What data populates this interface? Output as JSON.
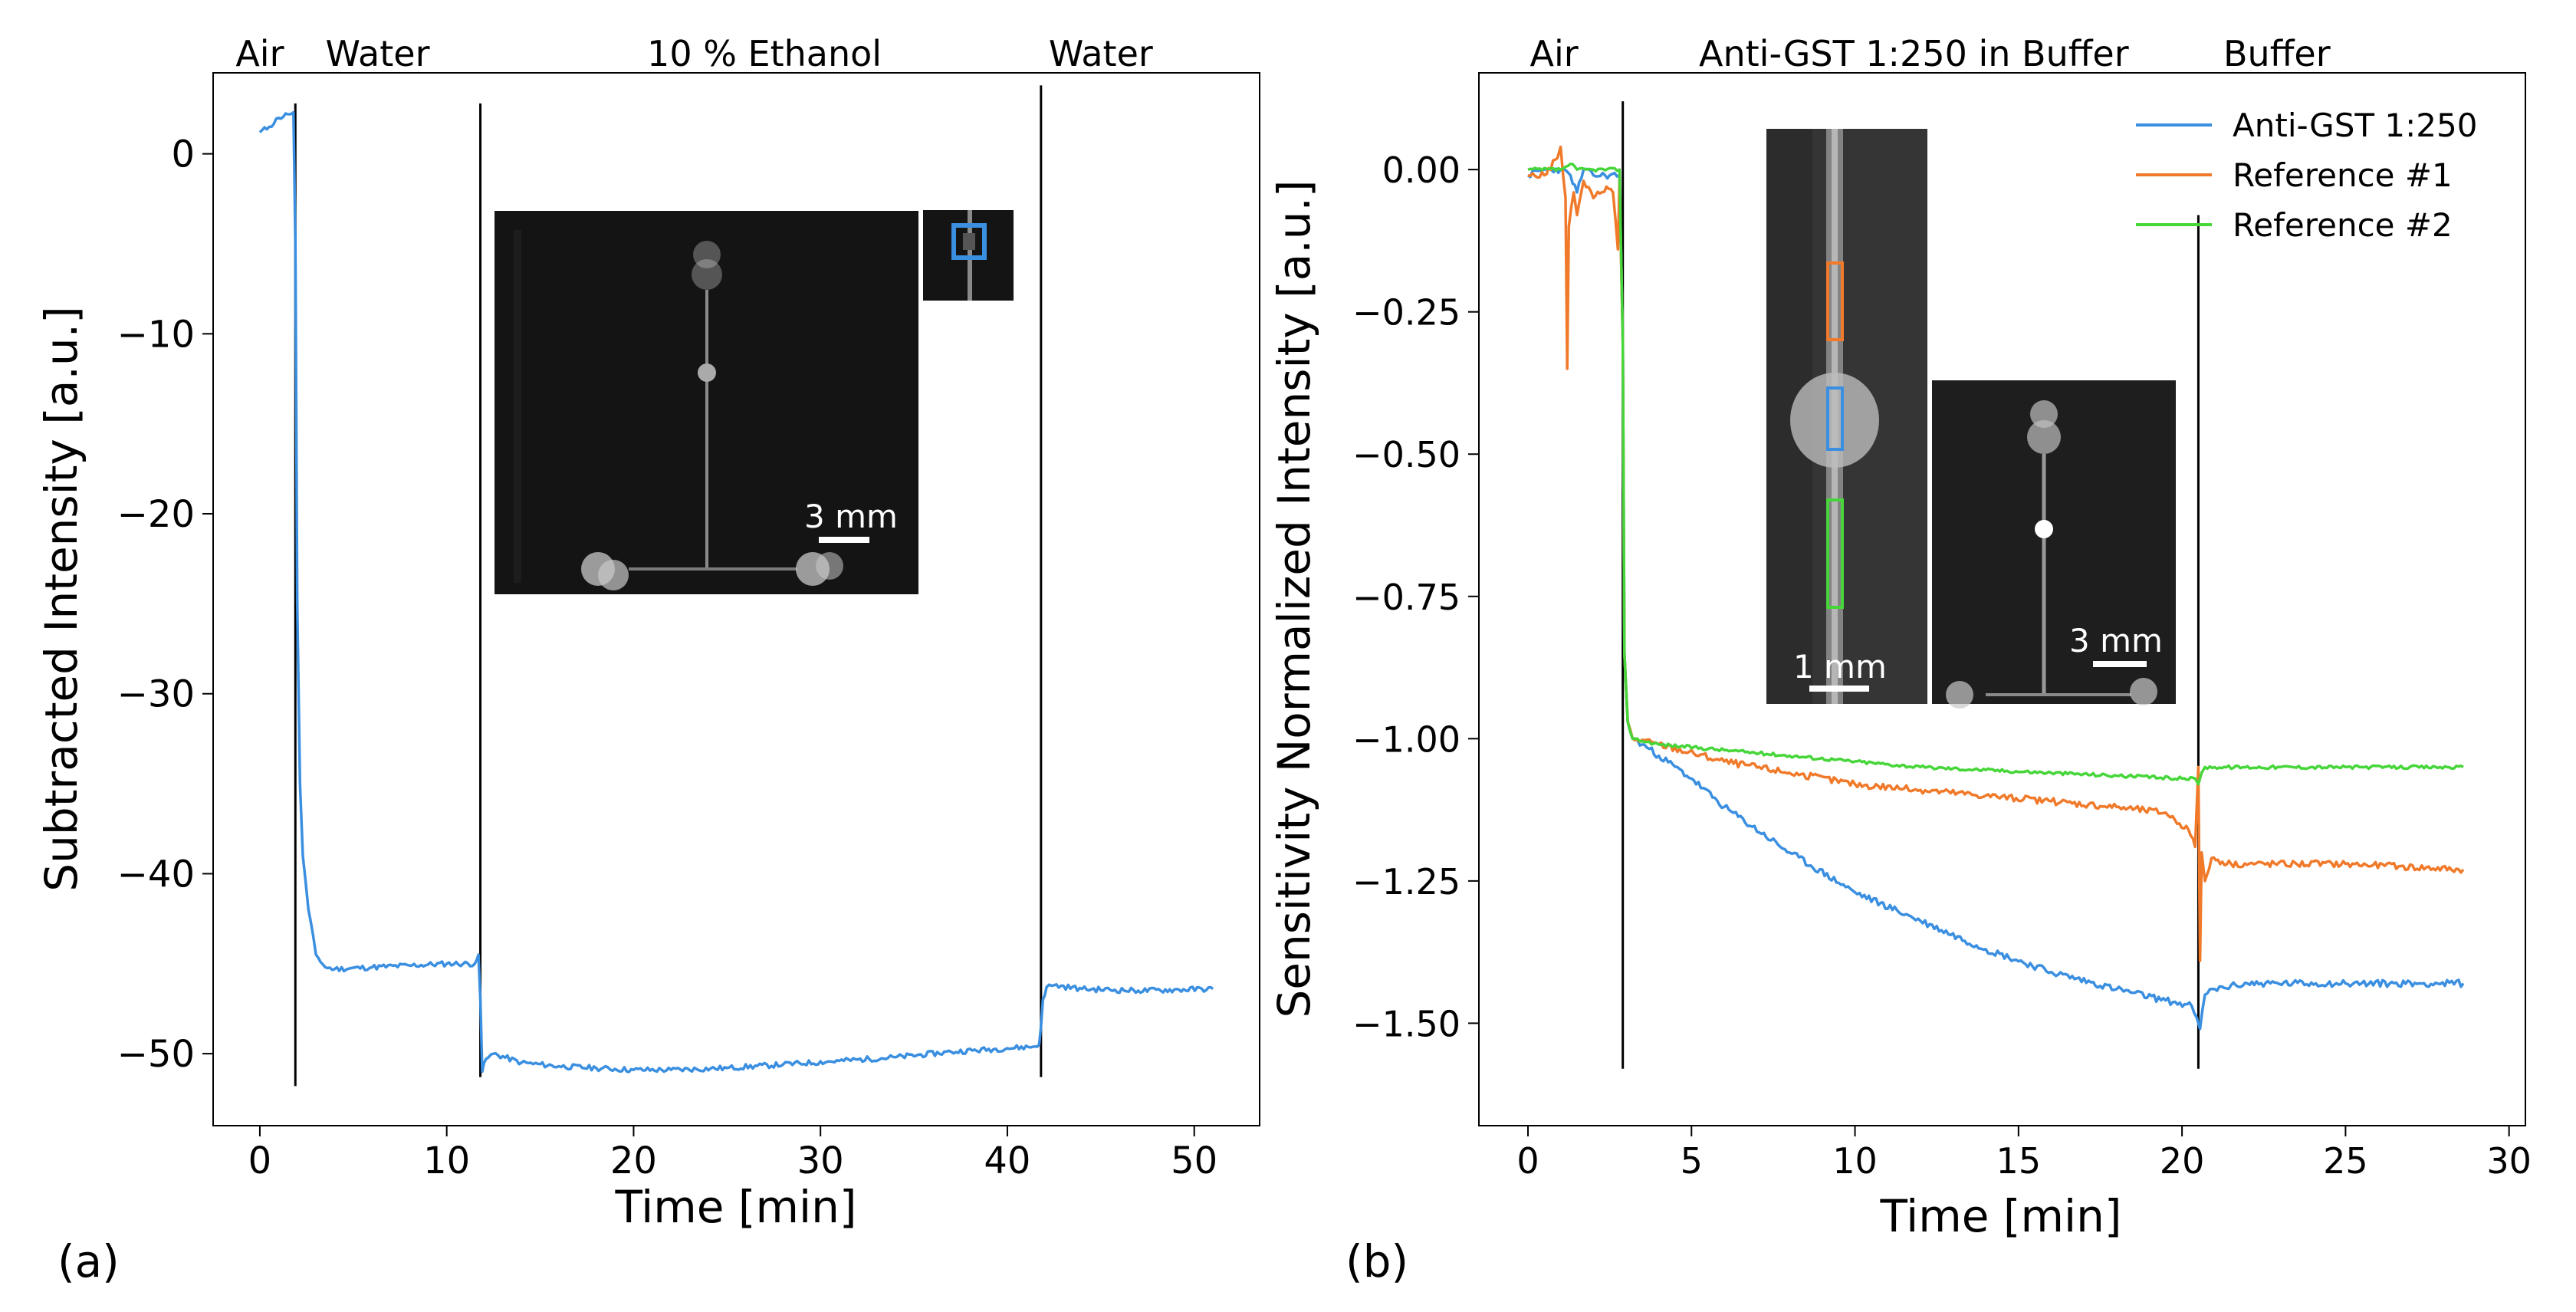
{
  "chart_data": [
    {
      "type": "line",
      "panel_label": "(a)",
      "xlabel": "Time [min]",
      "ylabel": "Subtracted Intensity [a.u.]",
      "xlim": [
        -2.5,
        53.5
      ],
      "ylim": [
        -54,
        4.5
      ],
      "xticks": [
        0,
        10,
        20,
        30,
        40,
        50
      ],
      "xtick_labels": [
        "0",
        "10",
        "20",
        "30",
        "40",
        "50"
      ],
      "yticks": [
        0,
        -10,
        -20,
        -30,
        -40,
        -50
      ],
      "ytick_labels": [
        "0",
        "−10",
        "−20",
        "−30",
        "−40",
        "−50"
      ],
      "phase_labels": [
        {
          "text": "Air",
          "x": 0
        },
        {
          "text": "Water",
          "x": 6.3
        },
        {
          "text": "10 % Ethanol",
          "x": 27
        },
        {
          "text": "Water",
          "x": 45
        }
      ],
      "vlines": [
        {
          "x": 1.9,
          "y0": -51.8,
          "y1": 2.8
        },
        {
          "x": 11.8,
          "y0": -51.3,
          "y1": 2.8
        },
        {
          "x": 41.8,
          "y0": -51.3,
          "y1": 3.8
        }
      ],
      "series": [
        {
          "name": "Subtracted intensity",
          "color": "#3b8fe0",
          "noise": 0.15,
          "x": [
            0,
            0.5,
            1.0,
            1.5,
            1.8,
            1.9,
            2.0,
            2.15,
            2.3,
            2.6,
            3.0,
            3.5,
            4.0,
            6,
            8,
            10,
            11.5,
            11.7,
            11.8,
            11.9,
            12.1,
            12.5,
            14,
            16,
            18,
            20,
            22,
            25,
            28,
            31,
            34,
            37,
            40,
            41.5,
            41.7,
            41.8,
            41.9,
            42.1,
            42.5,
            44,
            47,
            51
          ],
          "y": [
            1.2,
            1.5,
            2.0,
            2.2,
            2.3,
            -5,
            -25,
            -35,
            -39,
            -42,
            -44.5,
            -45.2,
            -45.3,
            -45.2,
            -45.1,
            -45.0,
            -45.0,
            -44.5,
            -47,
            -51.0,
            -50.3,
            -50.0,
            -50.5,
            -50.7,
            -50.8,
            -50.9,
            -50.9,
            -50.8,
            -50.6,
            -50.4,
            -50.2,
            -49.9,
            -49.7,
            -49.6,
            -49.5,
            -48.5,
            -47,
            -46.3,
            -46.2,
            -46.4,
            -46.5,
            -46.4
          ]
        }
      ],
      "insets": [
        {
          "scale_bar_label": "3 mm",
          "markers": []
        },
        {
          "scale_bar_label": "",
          "markers": [
            {
              "color": "#3b8fe0"
            }
          ]
        }
      ]
    },
    {
      "type": "line",
      "panel_label": "(b)",
      "xlabel": "Time [min]",
      "ylabel": "Sensitivity Normalized Intensity [a.u.]",
      "xlim": [
        -1.5,
        30.5
      ],
      "ylim": [
        -1.68,
        0.17
      ],
      "xticks": [
        0,
        5,
        10,
        15,
        20,
        25,
        30
      ],
      "xtick_labels": [
        "0",
        "5",
        "10",
        "15",
        "20",
        "25",
        "30"
      ],
      "yticks": [
        0.0,
        -0.25,
        -0.5,
        -0.75,
        -1.0,
        -1.25,
        -1.5
      ],
      "ytick_labels": [
        "0.00",
        "−0.25",
        "−0.50",
        "−0.75",
        "−1.00",
        "−1.25",
        "−1.50"
      ],
      "phase_labels": [
        {
          "text": "Air",
          "x": 0.8
        },
        {
          "text": "Anti-GST 1:250 in Buffer",
          "x": 11.8
        },
        {
          "text": "Buffer",
          "x": 22.9
        }
      ],
      "vlines": [
        {
          "x": 2.9,
          "y0": -1.58,
          "y1": 0.12
        },
        {
          "x": 20.5,
          "y0": -1.58,
          "y1": -0.08
        }
      ],
      "legend": {
        "position": "top-right",
        "entries": [
          "Anti-GST 1:250",
          "Reference #1",
          "Reference #2"
        ]
      },
      "series": [
        {
          "name": "Anti-GST 1:250",
          "color": "#3b8fe0",
          "noise": 0.006,
          "x": [
            0,
            0.5,
            1.0,
            1.3,
            1.5,
            1.7,
            2.0,
            2.5,
            2.8,
            2.9,
            2.95,
            3.05,
            3.2,
            3.5,
            4,
            5,
            6,
            8,
            10,
            12,
            14,
            16,
            18,
            19.5,
            20.3,
            20.45,
            20.55,
            20.7,
            21,
            22,
            25,
            28.6
          ],
          "y": [
            -0.01,
            0.0,
            0.0,
            -0.01,
            -0.04,
            0.0,
            -0.01,
            -0.01,
            -0.01,
            -0.3,
            -0.85,
            -0.97,
            -1.0,
            -1.01,
            -1.03,
            -1.07,
            -1.12,
            -1.2,
            -1.27,
            -1.32,
            -1.37,
            -1.41,
            -1.44,
            -1.46,
            -1.47,
            -1.49,
            -1.51,
            -1.45,
            -1.44,
            -1.43,
            -1.43,
            -1.43
          ]
        },
        {
          "name": "Reference #1",
          "color": "#f07a2a",
          "noise": 0.006,
          "x": [
            0,
            0.5,
            0.9,
            1.0,
            1.15,
            1.2,
            1.25,
            1.4,
            1.5,
            1.7,
            2.0,
            2.4,
            2.6,
            2.75,
            2.8,
            2.9,
            2.95,
            3.05,
            3.2,
            4,
            6,
            8,
            10,
            12,
            14,
            16,
            18,
            19.5,
            20.2,
            20.4,
            20.5,
            20.55,
            20.6,
            20.7,
            20.9,
            21.5,
            25,
            28.6
          ],
          "y": [
            -0.01,
            -0.01,
            0.02,
            0.04,
            -0.05,
            -0.35,
            -0.1,
            -0.04,
            -0.08,
            -0.02,
            -0.05,
            -0.03,
            -0.04,
            -0.14,
            -0.02,
            -0.3,
            -0.85,
            -0.97,
            -1.0,
            -1.01,
            -1.04,
            -1.06,
            -1.08,
            -1.09,
            -1.1,
            -1.11,
            -1.12,
            -1.13,
            -1.16,
            -1.19,
            -1.05,
            -1.39,
            -1.2,
            -1.25,
            -1.21,
            -1.22,
            -1.22,
            -1.23
          ]
        },
        {
          "name": "Reference #2",
          "color": "#47d63a",
          "noise": 0.003,
          "x": [
            0,
            1,
            1.3,
            1.5,
            2,
            2.8,
            2.9,
            2.95,
            3.05,
            3.2,
            4,
            6,
            8,
            10,
            12,
            14,
            16,
            18,
            20,
            20.4,
            20.5,
            20.6,
            20.7,
            21,
            23,
            25,
            28.6
          ],
          "y": [
            0.0,
            0.0,
            0.01,
            0.0,
            0.0,
            0.0,
            -0.3,
            -0.85,
            -0.97,
            -1.0,
            -1.01,
            -1.02,
            -1.03,
            -1.04,
            -1.05,
            -1.055,
            -1.06,
            -1.065,
            -1.07,
            -1.07,
            -1.08,
            -1.06,
            -1.05,
            -1.05,
            -1.05,
            -1.05,
            -1.05
          ]
        }
      ],
      "insets": [
        {
          "scale_bar_label": "1 mm",
          "markers": [
            {
              "color": "#f07a2a"
            },
            {
              "color": "#3b8fe0"
            },
            {
              "color": "#47d63a"
            }
          ]
        },
        {
          "scale_bar_label": "3 mm",
          "markers": []
        }
      ]
    }
  ]
}
